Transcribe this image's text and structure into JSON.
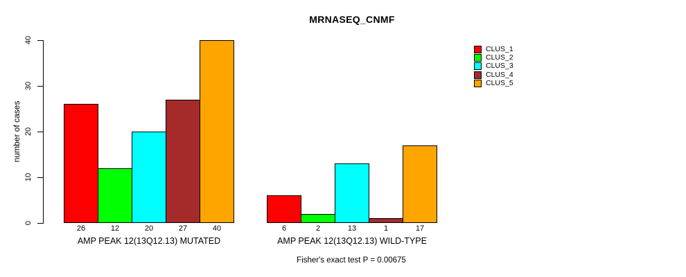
{
  "title": "MRNASEQ_CNMF",
  "chart_data": {
    "type": "bar",
    "title": "MRNASEQ_CNMF",
    "xlabel": "",
    "ylabel": "number of cases",
    "ylim": [
      0,
      40
    ],
    "yticks": [
      0,
      10,
      20,
      30,
      40
    ],
    "grid": false,
    "legend_position": "right",
    "categories": [
      "CLUS_1",
      "CLUS_2",
      "CLUS_3",
      "CLUS_4",
      "CLUS_5"
    ],
    "groups": [
      {
        "label": "AMP PEAK 12(13Q12.13) MUTATED",
        "values": [
          26,
          12,
          20,
          27,
          40
        ]
      },
      {
        "label": "AMP PEAK 12(13Q12.13) WILD-TYPE",
        "values": [
          6,
          2,
          13,
          1,
          17
        ]
      }
    ],
    "series_colors": [
      "#FF0000",
      "#00FF00",
      "#00FFFF",
      "#A52A2A",
      "#FFA500"
    ],
    "legend": [
      {
        "label": "CLUS_1",
        "color": "#FF0000"
      },
      {
        "label": "CLUS_2",
        "color": "#00FF00"
      },
      {
        "label": "CLUS_3",
        "color": "#00FFFF"
      },
      {
        "label": "CLUS_4",
        "color": "#A52A2A"
      },
      {
        "label": "CLUS_5",
        "color": "#FFA500"
      }
    ],
    "annotation": "Fisher's exact test P = 0.00675",
    "axis_color": "#000000",
    "background_color": "#FFFFFF"
  }
}
